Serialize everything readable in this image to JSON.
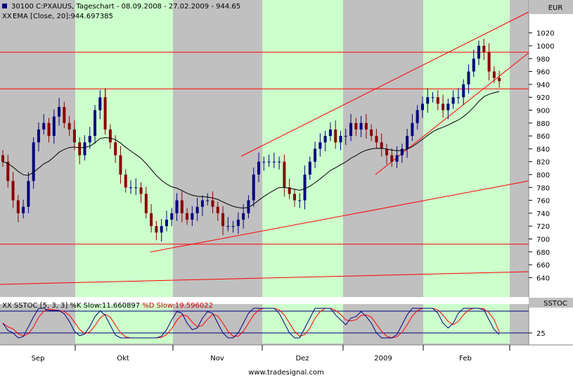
{
  "header": {
    "line1": "30100  C:PXAUUS, Tageschart - 08.09.2008 - 27.02.2009 - 944.65",
    "line2": "EMA [Close, 20]:944.697385"
  },
  "currency": "EUR",
  "y_ticks": [
    "1020",
    "1000",
    "980",
    "960",
    "940",
    "920",
    "900",
    "880",
    "860",
    "840",
    "820",
    "800",
    "780",
    "760",
    "740",
    "720",
    "700",
    "680",
    "660",
    "640"
  ],
  "x_labels": [
    "Sep",
    "Okt",
    "Nov",
    "Dez",
    "2009",
    "Feb"
  ],
  "stoch": {
    "title_prefix": "SSTOC [5, 3, 3]",
    "k_label": "%K Slow:11.660897",
    "d_label": "%D Slow:19.596022",
    "panel_label": "SSTOC",
    "level_label": "25"
  },
  "footer": "www.tradesignal.com",
  "colors": {
    "up_candle": "#000080",
    "down_candle": "#8b0000",
    "trendline": "#ff0000",
    "ema": "#000000",
    "month_band": "#ccffcc",
    "k_line": "#000080",
    "d_line": "#ff0000"
  },
  "chart_data": {
    "type": "candlestick",
    "title": "C:PXAUUS, Tageschart - 08.09.2008 - 27.02.2009 - 944.65",
    "currency": "EUR",
    "ylim": [
      625,
      1035
    ],
    "closes": [
      820,
      790,
      760,
      740,
      750,
      790,
      850,
      870,
      880,
      860,
      890,
      905,
      880,
      870,
      850,
      830,
      850,
      860,
      900,
      920,
      870,
      850,
      830,
      800,
      780,
      780,
      780,
      770,
      740,
      720,
      710,
      720,
      730,
      740,
      760,
      740,
      730,
      740,
      750,
      760,
      760,
      750,
      740,
      720,
      720,
      720,
      730,
      740,
      760,
      800,
      820,
      820,
      820,
      820,
      820,
      780,
      770,
      760,
      760,
      800,
      820,
      840,
      850,
      860,
      870,
      850,
      860,
      860,
      880,
      870,
      880,
      870,
      860,
      850,
      840,
      830,
      820,
      830,
      840,
      860,
      880,
      900,
      910,
      920,
      920,
      910,
      900,
      910,
      920,
      920,
      940,
      960,
      980,
      1000,
      990,
      960,
      950,
      945
    ],
    "ema20_last": 944.697385,
    "trendlines": [
      {
        "from": "2008-11-17",
        "to": "2009-03-02",
        "value_from": 830,
        "value_to": 1015
      },
      {
        "from": "2008-10-24",
        "to": "2009-03-02",
        "value_from": 690,
        "value_to": 795
      },
      {
        "from": "2009-01-05",
        "to": "2009-03-02",
        "value_from": 805,
        "value_to": 995
      }
    ],
    "horizontal_levels": [
      990,
      933,
      692
    ],
    "stochastic": {
      "k_slow": 11.660897,
      "d_slow": 19.596022,
      "levels": [
        25,
        80
      ]
    }
  }
}
